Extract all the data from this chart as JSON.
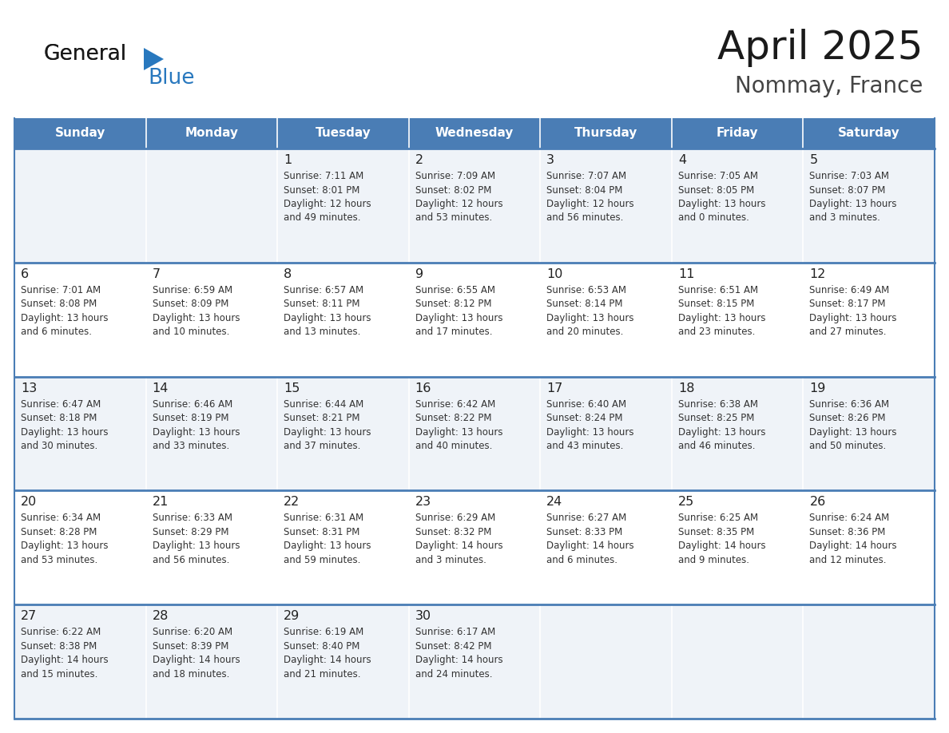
{
  "title": "April 2025",
  "subtitle": "Nommay, France",
  "header_color": "#4a7db5",
  "header_text_color": "#ffffff",
  "cell_bg_light": "#eff3f8",
  "cell_bg_white": "#ffffff",
  "border_color": "#4a7db5",
  "text_color": "#333333",
  "day_num_color": "#222222",
  "day_headers": [
    "Sunday",
    "Monday",
    "Tuesday",
    "Wednesday",
    "Thursday",
    "Friday",
    "Saturday"
  ],
  "weeks": [
    [
      {
        "day": "",
        "sunrise": "",
        "sunset": "",
        "daylight": ""
      },
      {
        "day": "",
        "sunrise": "",
        "sunset": "",
        "daylight": ""
      },
      {
        "day": "1",
        "sunrise": "Sunrise: 7:11 AM",
        "sunset": "Sunset: 8:01 PM",
        "daylight": "Daylight: 12 hours\nand 49 minutes."
      },
      {
        "day": "2",
        "sunrise": "Sunrise: 7:09 AM",
        "sunset": "Sunset: 8:02 PM",
        "daylight": "Daylight: 12 hours\nand 53 minutes."
      },
      {
        "day": "3",
        "sunrise": "Sunrise: 7:07 AM",
        "sunset": "Sunset: 8:04 PM",
        "daylight": "Daylight: 12 hours\nand 56 minutes."
      },
      {
        "day": "4",
        "sunrise": "Sunrise: 7:05 AM",
        "sunset": "Sunset: 8:05 PM",
        "daylight": "Daylight: 13 hours\nand 0 minutes."
      },
      {
        "day": "5",
        "sunrise": "Sunrise: 7:03 AM",
        "sunset": "Sunset: 8:07 PM",
        "daylight": "Daylight: 13 hours\nand 3 minutes."
      }
    ],
    [
      {
        "day": "6",
        "sunrise": "Sunrise: 7:01 AM",
        "sunset": "Sunset: 8:08 PM",
        "daylight": "Daylight: 13 hours\nand 6 minutes."
      },
      {
        "day": "7",
        "sunrise": "Sunrise: 6:59 AM",
        "sunset": "Sunset: 8:09 PM",
        "daylight": "Daylight: 13 hours\nand 10 minutes."
      },
      {
        "day": "8",
        "sunrise": "Sunrise: 6:57 AM",
        "sunset": "Sunset: 8:11 PM",
        "daylight": "Daylight: 13 hours\nand 13 minutes."
      },
      {
        "day": "9",
        "sunrise": "Sunrise: 6:55 AM",
        "sunset": "Sunset: 8:12 PM",
        "daylight": "Daylight: 13 hours\nand 17 minutes."
      },
      {
        "day": "10",
        "sunrise": "Sunrise: 6:53 AM",
        "sunset": "Sunset: 8:14 PM",
        "daylight": "Daylight: 13 hours\nand 20 minutes."
      },
      {
        "day": "11",
        "sunrise": "Sunrise: 6:51 AM",
        "sunset": "Sunset: 8:15 PM",
        "daylight": "Daylight: 13 hours\nand 23 minutes."
      },
      {
        "day": "12",
        "sunrise": "Sunrise: 6:49 AM",
        "sunset": "Sunset: 8:17 PM",
        "daylight": "Daylight: 13 hours\nand 27 minutes."
      }
    ],
    [
      {
        "day": "13",
        "sunrise": "Sunrise: 6:47 AM",
        "sunset": "Sunset: 8:18 PM",
        "daylight": "Daylight: 13 hours\nand 30 minutes."
      },
      {
        "day": "14",
        "sunrise": "Sunrise: 6:46 AM",
        "sunset": "Sunset: 8:19 PM",
        "daylight": "Daylight: 13 hours\nand 33 minutes."
      },
      {
        "day": "15",
        "sunrise": "Sunrise: 6:44 AM",
        "sunset": "Sunset: 8:21 PM",
        "daylight": "Daylight: 13 hours\nand 37 minutes."
      },
      {
        "day": "16",
        "sunrise": "Sunrise: 6:42 AM",
        "sunset": "Sunset: 8:22 PM",
        "daylight": "Daylight: 13 hours\nand 40 minutes."
      },
      {
        "day": "17",
        "sunrise": "Sunrise: 6:40 AM",
        "sunset": "Sunset: 8:24 PM",
        "daylight": "Daylight: 13 hours\nand 43 minutes."
      },
      {
        "day": "18",
        "sunrise": "Sunrise: 6:38 AM",
        "sunset": "Sunset: 8:25 PM",
        "daylight": "Daylight: 13 hours\nand 46 minutes."
      },
      {
        "day": "19",
        "sunrise": "Sunrise: 6:36 AM",
        "sunset": "Sunset: 8:26 PM",
        "daylight": "Daylight: 13 hours\nand 50 minutes."
      }
    ],
    [
      {
        "day": "20",
        "sunrise": "Sunrise: 6:34 AM",
        "sunset": "Sunset: 8:28 PM",
        "daylight": "Daylight: 13 hours\nand 53 minutes."
      },
      {
        "day": "21",
        "sunrise": "Sunrise: 6:33 AM",
        "sunset": "Sunset: 8:29 PM",
        "daylight": "Daylight: 13 hours\nand 56 minutes."
      },
      {
        "day": "22",
        "sunrise": "Sunrise: 6:31 AM",
        "sunset": "Sunset: 8:31 PM",
        "daylight": "Daylight: 13 hours\nand 59 minutes."
      },
      {
        "day": "23",
        "sunrise": "Sunrise: 6:29 AM",
        "sunset": "Sunset: 8:32 PM",
        "daylight": "Daylight: 14 hours\nand 3 minutes."
      },
      {
        "day": "24",
        "sunrise": "Sunrise: 6:27 AM",
        "sunset": "Sunset: 8:33 PM",
        "daylight": "Daylight: 14 hours\nand 6 minutes."
      },
      {
        "day": "25",
        "sunrise": "Sunrise: 6:25 AM",
        "sunset": "Sunset: 8:35 PM",
        "daylight": "Daylight: 14 hours\nand 9 minutes."
      },
      {
        "day": "26",
        "sunrise": "Sunrise: 6:24 AM",
        "sunset": "Sunset: 8:36 PM",
        "daylight": "Daylight: 14 hours\nand 12 minutes."
      }
    ],
    [
      {
        "day": "27",
        "sunrise": "Sunrise: 6:22 AM",
        "sunset": "Sunset: 8:38 PM",
        "daylight": "Daylight: 14 hours\nand 15 minutes."
      },
      {
        "day": "28",
        "sunrise": "Sunrise: 6:20 AM",
        "sunset": "Sunset: 8:39 PM",
        "daylight": "Daylight: 14 hours\nand 18 minutes."
      },
      {
        "day": "29",
        "sunrise": "Sunrise: 6:19 AM",
        "sunset": "Sunset: 8:40 PM",
        "daylight": "Daylight: 14 hours\nand 21 minutes."
      },
      {
        "day": "30",
        "sunrise": "Sunrise: 6:17 AM",
        "sunset": "Sunset: 8:42 PM",
        "daylight": "Daylight: 14 hours\nand 24 minutes."
      },
      {
        "day": "",
        "sunrise": "",
        "sunset": "",
        "daylight": ""
      },
      {
        "day": "",
        "sunrise": "",
        "sunset": "",
        "daylight": ""
      },
      {
        "day": "",
        "sunrise": "",
        "sunset": "",
        "daylight": ""
      }
    ]
  ],
  "logo_general_color": "#1a1a1a",
  "logo_blue_color": "#2878be",
  "logo_triangle_color": "#2878be",
  "title_color": "#1a1a1a",
  "subtitle_color": "#444444"
}
